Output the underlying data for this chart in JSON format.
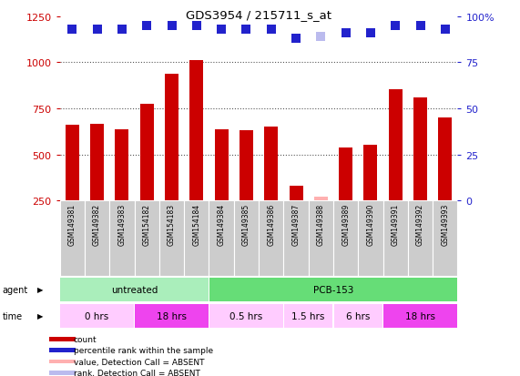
{
  "title": "GDS3954 / 215711_s_at",
  "samples": [
    "GSM149381",
    "GSM149382",
    "GSM149383",
    "GSM154182",
    "GSM154183",
    "GSM154184",
    "GSM149384",
    "GSM149385",
    "GSM149386",
    "GSM149387",
    "GSM149388",
    "GSM149389",
    "GSM149390",
    "GSM149391",
    "GSM149392",
    "GSM149393"
  ],
  "bar_values": [
    660,
    665,
    635,
    775,
    940,
    1010,
    635,
    630,
    650,
    330,
    270,
    540,
    555,
    855,
    810,
    700
  ],
  "bar_absent": [
    false,
    false,
    false,
    false,
    false,
    false,
    false,
    false,
    false,
    false,
    true,
    false,
    false,
    false,
    false,
    false
  ],
  "bar_color_normal": "#cc0000",
  "bar_color_absent": "#ffb0b0",
  "rank_values_pct": [
    93,
    93,
    93,
    95,
    95,
    95,
    93,
    93,
    93,
    88,
    89,
    91,
    91,
    95,
    95,
    93
  ],
  "rank_absent": [
    false,
    false,
    false,
    false,
    false,
    false,
    false,
    false,
    false,
    false,
    true,
    false,
    false,
    false,
    false,
    false
  ],
  "rank_color_normal": "#2222cc",
  "rank_color_absent": "#bbbbee",
  "ylim_left": [
    250,
    1250
  ],
  "ylim_right": [
    0,
    100
  ],
  "yticks_left": [
    250,
    500,
    750,
    1000,
    1250
  ],
  "yticks_right": [
    0,
    25,
    50,
    75,
    100
  ],
  "grid_lines": [
    500,
    750,
    1000
  ],
  "agent_groups": [
    {
      "label": "untreated",
      "start": 0,
      "end": 6,
      "color": "#aaeebb"
    },
    {
      "label": "PCB-153",
      "start": 6,
      "end": 16,
      "color": "#66dd77"
    }
  ],
  "time_groups": [
    {
      "label": "0 hrs",
      "start": 0,
      "end": 3,
      "color": "#ffccff"
    },
    {
      "label": "18 hrs",
      "start": 3,
      "end": 6,
      "color": "#ee44ee"
    },
    {
      "label": "0.5 hrs",
      "start": 6,
      "end": 9,
      "color": "#ffccff"
    },
    {
      "label": "1.5 hrs",
      "start": 9,
      "end": 11,
      "color": "#ffccff"
    },
    {
      "label": "6 hrs",
      "start": 11,
      "end": 13,
      "color": "#ffccff"
    },
    {
      "label": "18 hrs",
      "start": 13,
      "end": 16,
      "color": "#ee44ee"
    }
  ],
  "legend_items": [
    {
      "color": "#cc0000",
      "label": "count",
      "marker": "square"
    },
    {
      "color": "#2222cc",
      "label": "percentile rank within the sample",
      "marker": "square"
    },
    {
      "color": "#ffb0b0",
      "label": "value, Detection Call = ABSENT",
      "marker": "square"
    },
    {
      "color": "#bbbbee",
      "label": "rank, Detection Call = ABSENT",
      "marker": "square"
    }
  ],
  "bg_color": "#ffffff",
  "grid_color": "#555555",
  "tick_label_bg": "#cccccc",
  "axis_color_left": "#cc0000",
  "axis_color_right": "#2222cc",
  "bar_bottom": 250
}
